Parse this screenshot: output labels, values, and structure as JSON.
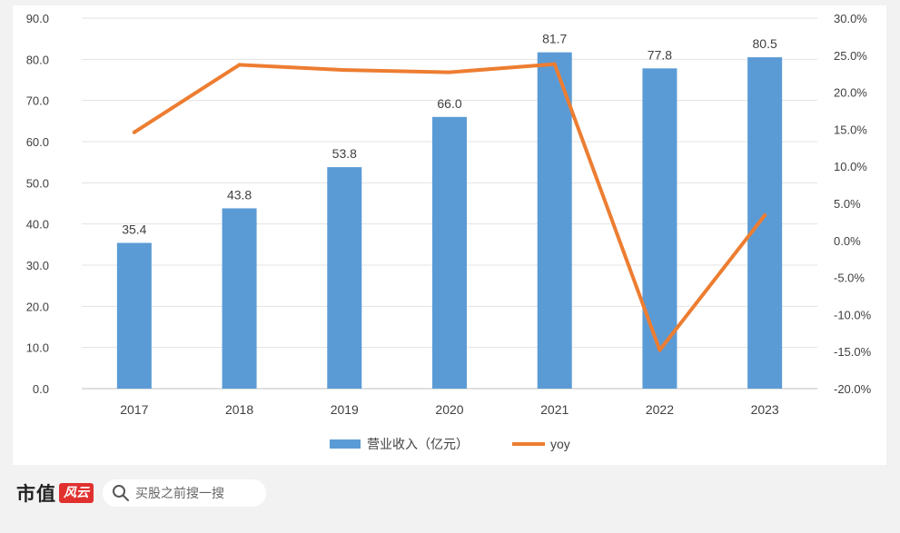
{
  "chart_data": {
    "type": "bar",
    "categories": [
      "2017",
      "2018",
      "2019",
      "2020",
      "2021",
      "2022",
      "2023"
    ],
    "series": [
      {
        "name": "营业收入（亿元）",
        "type": "bar",
        "axis": "left",
        "values": [
          35.4,
          43.8,
          53.8,
          66.0,
          81.7,
          77.8,
          80.5
        ],
        "labels": [
          "35.4",
          "43.8",
          "53.8",
          "66.0",
          "81.7",
          "77.8",
          "80.5"
        ],
        "color": "#5b9bd5"
      },
      {
        "name": "yoy",
        "type": "line",
        "axis": "right",
        "values": [
          14.6,
          23.7,
          23.0,
          22.7,
          23.8,
          -14.8,
          3.4
        ],
        "color": "#ed7d31"
      }
    ],
    "y_left": {
      "min": 0,
      "max": 90,
      "ticks": [
        "0.0",
        "10.0",
        "20.0",
        "30.0",
        "40.0",
        "50.0",
        "60.0",
        "70.0",
        "80.0",
        "90.0"
      ]
    },
    "y_right": {
      "min": -20,
      "max": 30,
      "ticks": [
        "-20.0%",
        "-15.0%",
        "-10.0%",
        "-5.0%",
        "0.0%",
        "5.0%",
        "10.0%",
        "15.0%",
        "20.0%",
        "25.0%",
        "30.0%"
      ]
    },
    "grid": true,
    "legend_position": "bottom"
  },
  "footer": {
    "brand": "市值",
    "brand_mark": "风云",
    "search_placeholder": "买股之前搜一搜"
  },
  "colors": {
    "bar": "#5b9bd5",
    "line": "#ed7d31",
    "brand_red": "#e0312f"
  }
}
